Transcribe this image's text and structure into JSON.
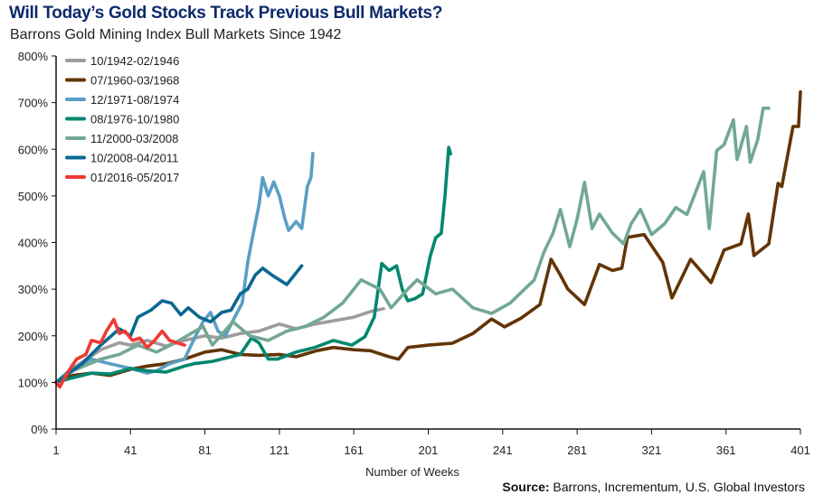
{
  "chart_data": {
    "type": "line",
    "title": "Will Today’s Gold Stocks Track Previous Bull Markets?",
    "subtitle": "Barrons Gold Mining Index Bull Markets Since 1942",
    "xlabel": "Number of Weeks",
    "ylabel": "",
    "xlim": [
      1,
      401
    ],
    "ylim": [
      0,
      800
    ],
    "x_ticks": [
      1,
      41,
      81,
      121,
      161,
      201,
      241,
      281,
      321,
      361,
      401
    ],
    "y_ticks": [
      0,
      100,
      200,
      300,
      400,
      500,
      600,
      700,
      800
    ],
    "y_tick_suffix": "%",
    "grid": false,
    "legend_position": "top-left",
    "source_label": "Source:",
    "source_text": " Barrons, Incrementum, U.S. Global Investors",
    "series": [
      {
        "name": "10/1942-02/1946",
        "color": "#9d9c9e",
        "points": [
          [
            1,
            100
          ],
          [
            10,
            130
          ],
          [
            25,
            170
          ],
          [
            35,
            185
          ],
          [
            41,
            180
          ],
          [
            50,
            190
          ],
          [
            60,
            178
          ],
          [
            70,
            190
          ],
          [
            81,
            200
          ],
          [
            90,
            195
          ],
          [
            100,
            205
          ],
          [
            110,
            210
          ],
          [
            121,
            225
          ],
          [
            130,
            215
          ],
          [
            140,
            225
          ],
          [
            150,
            232
          ],
          [
            161,
            240
          ],
          [
            170,
            252
          ],
          [
            177,
            258
          ]
        ]
      },
      {
        "name": "07/1960-03/1968",
        "color": "#633406",
        "points": [
          [
            1,
            100
          ],
          [
            10,
            115
          ],
          [
            20,
            120
          ],
          [
            30,
            115
          ],
          [
            41,
            128
          ],
          [
            50,
            135
          ],
          [
            60,
            140
          ],
          [
            70,
            150
          ],
          [
            81,
            165
          ],
          [
            90,
            170
          ],
          [
            100,
            160
          ],
          [
            110,
            158
          ],
          [
            121,
            160
          ],
          [
            130,
            155
          ],
          [
            141,
            168
          ],
          [
            150,
            175
          ],
          [
            161,
            170
          ],
          [
            170,
            168
          ],
          [
            180,
            155
          ],
          [
            185,
            150
          ],
          [
            190,
            175
          ],
          [
            201,
            180
          ],
          [
            214,
            184
          ],
          [
            225,
            205
          ],
          [
            235,
            236
          ],
          [
            242,
            219
          ],
          [
            251,
            238
          ],
          [
            261,
            267
          ],
          [
            267,
            364
          ],
          [
            272,
            330
          ],
          [
            276,
            300
          ],
          [
            285,
            267
          ],
          [
            293,
            353
          ],
          [
            300,
            340
          ],
          [
            305,
            345
          ],
          [
            308,
            411
          ],
          [
            317,
            417
          ],
          [
            327,
            358
          ],
          [
            332,
            281
          ],
          [
            342,
            364
          ],
          [
            353,
            314
          ],
          [
            360,
            384
          ],
          [
            369,
            397
          ],
          [
            373,
            461
          ],
          [
            376,
            372
          ],
          [
            384,
            397
          ],
          [
            389,
            527
          ],
          [
            391,
            520
          ],
          [
            397,
            649
          ],
          [
            400,
            649
          ],
          [
            401,
            723
          ]
        ]
      },
      {
        "name": "12/1971-08/1974",
        "color": "#5a9ec5",
        "points": [
          [
            1,
            100
          ],
          [
            8,
            125
          ],
          [
            20,
            150
          ],
          [
            30,
            140
          ],
          [
            41,
            130
          ],
          [
            50,
            120
          ],
          [
            55,
            125
          ],
          [
            62,
            140
          ],
          [
            70,
            150
          ],
          [
            76,
            200
          ],
          [
            80,
            230
          ],
          [
            84,
            250
          ],
          [
            88,
            210
          ],
          [
            92,
            200
          ],
          [
            97,
            240
          ],
          [
            101,
            270
          ],
          [
            104,
            358
          ],
          [
            107,
            420
          ],
          [
            110,
            480
          ],
          [
            112,
            539
          ],
          [
            115,
            500
          ],
          [
            118,
            530
          ],
          [
            121,
            500
          ],
          [
            124,
            450
          ],
          [
            126,
            426
          ],
          [
            130,
            445
          ],
          [
            133,
            430
          ],
          [
            136,
            520
          ],
          [
            138,
            540
          ],
          [
            139,
            591
          ]
        ]
      },
      {
        "name": "08/1976-10/1980",
        "color": "#00876f",
        "points": [
          [
            1,
            100
          ],
          [
            10,
            110
          ],
          [
            20,
            120
          ],
          [
            30,
            118
          ],
          [
            41,
            130
          ],
          [
            50,
            125
          ],
          [
            60,
            122
          ],
          [
            70,
            135
          ],
          [
            75,
            140
          ],
          [
            85,
            145
          ],
          [
            95,
            155
          ],
          [
            100,
            160
          ],
          [
            106,
            195
          ],
          [
            110,
            185
          ],
          [
            115,
            150
          ],
          [
            120,
            150
          ],
          [
            130,
            165
          ],
          [
            140,
            175
          ],
          [
            150,
            190
          ],
          [
            160,
            180
          ],
          [
            167,
            198
          ],
          [
            172,
            240
          ],
          [
            176,
            355
          ],
          [
            180,
            340
          ],
          [
            184,
            350
          ],
          [
            187,
            300
          ],
          [
            190,
            275
          ],
          [
            194,
            280
          ],
          [
            198,
            290
          ],
          [
            202,
            370
          ],
          [
            205,
            410
          ],
          [
            208,
            420
          ],
          [
            210,
            500
          ],
          [
            212,
            604
          ],
          [
            213,
            590
          ]
        ]
      },
      {
        "name": "11/2000-03/2008",
        "color": "#72a894",
        "points": [
          [
            1,
            100
          ],
          [
            10,
            125
          ],
          [
            25,
            150
          ],
          [
            35,
            160
          ],
          [
            45,
            180
          ],
          [
            55,
            165
          ],
          [
            65,
            185
          ],
          [
            80,
            220
          ],
          [
            85,
            180
          ],
          [
            96,
            230
          ],
          [
            105,
            200
          ],
          [
            115,
            190
          ],
          [
            125,
            210
          ],
          [
            135,
            220
          ],
          [
            145,
            240
          ],
          [
            155,
            270
          ],
          [
            165,
            320
          ],
          [
            170,
            310
          ],
          [
            175,
            300
          ],
          [
            181,
            260
          ],
          [
            190,
            300
          ],
          [
            195,
            320
          ],
          [
            205,
            290
          ],
          [
            214,
            300
          ],
          [
            225,
            260
          ],
          [
            235,
            248
          ],
          [
            245,
            270
          ],
          [
            258,
            320
          ],
          [
            263,
            378
          ],
          [
            268,
            420
          ],
          [
            272,
            471
          ],
          [
            277,
            391
          ],
          [
            281,
            450
          ],
          [
            285,
            529
          ],
          [
            289,
            430
          ],
          [
            293,
            461
          ],
          [
            300,
            420
          ],
          [
            306,
            397
          ],
          [
            310,
            440
          ],
          [
            315,
            471
          ],
          [
            321,
            417
          ],
          [
            328,
            440
          ],
          [
            334,
            475
          ],
          [
            340,
            460
          ],
          [
            349,
            552
          ],
          [
            352,
            430
          ],
          [
            356,
            597
          ],
          [
            360,
            610
          ],
          [
            365,
            663
          ],
          [
            367,
            578
          ],
          [
            372,
            649
          ],
          [
            374,
            572
          ],
          [
            378,
            620
          ],
          [
            381,
            688
          ],
          [
            384,
            688
          ]
        ]
      },
      {
        "name": "10/2008-04/2011",
        "color": "#0a6890",
        "points": [
          [
            1,
            100
          ],
          [
            8,
            120
          ],
          [
            15,
            140
          ],
          [
            25,
            180
          ],
          [
            35,
            215
          ],
          [
            41,
            200
          ],
          [
            45,
            240
          ],
          [
            52,
            255
          ],
          [
            58,
            275
          ],
          [
            63,
            270
          ],
          [
            68,
            245
          ],
          [
            72,
            260
          ],
          [
            78,
            240
          ],
          [
            84,
            230
          ],
          [
            90,
            250
          ],
          [
            95,
            255
          ],
          [
            100,
            290
          ],
          [
            104,
            300
          ],
          [
            108,
            330
          ],
          [
            112,
            345
          ],
          [
            117,
            330
          ],
          [
            121,
            320
          ],
          [
            125,
            310
          ],
          [
            129,
            330
          ],
          [
            133,
            350
          ]
        ]
      },
      {
        "name": "01/2016-05/2017",
        "color": "#ef3a33",
        "points": [
          [
            1,
            100
          ],
          [
            3,
            90
          ],
          [
            7,
            120
          ],
          [
            12,
            150
          ],
          [
            17,
            160
          ],
          [
            20,
            190
          ],
          [
            25,
            185
          ],
          [
            28,
            210
          ],
          [
            32,
            235
          ],
          [
            35,
            205
          ],
          [
            38,
            210
          ],
          [
            42,
            190
          ],
          [
            46,
            195
          ],
          [
            50,
            175
          ],
          [
            54,
            190
          ],
          [
            58,
            210
          ],
          [
            62,
            190
          ],
          [
            66,
            185
          ],
          [
            70,
            180
          ]
        ]
      }
    ]
  }
}
